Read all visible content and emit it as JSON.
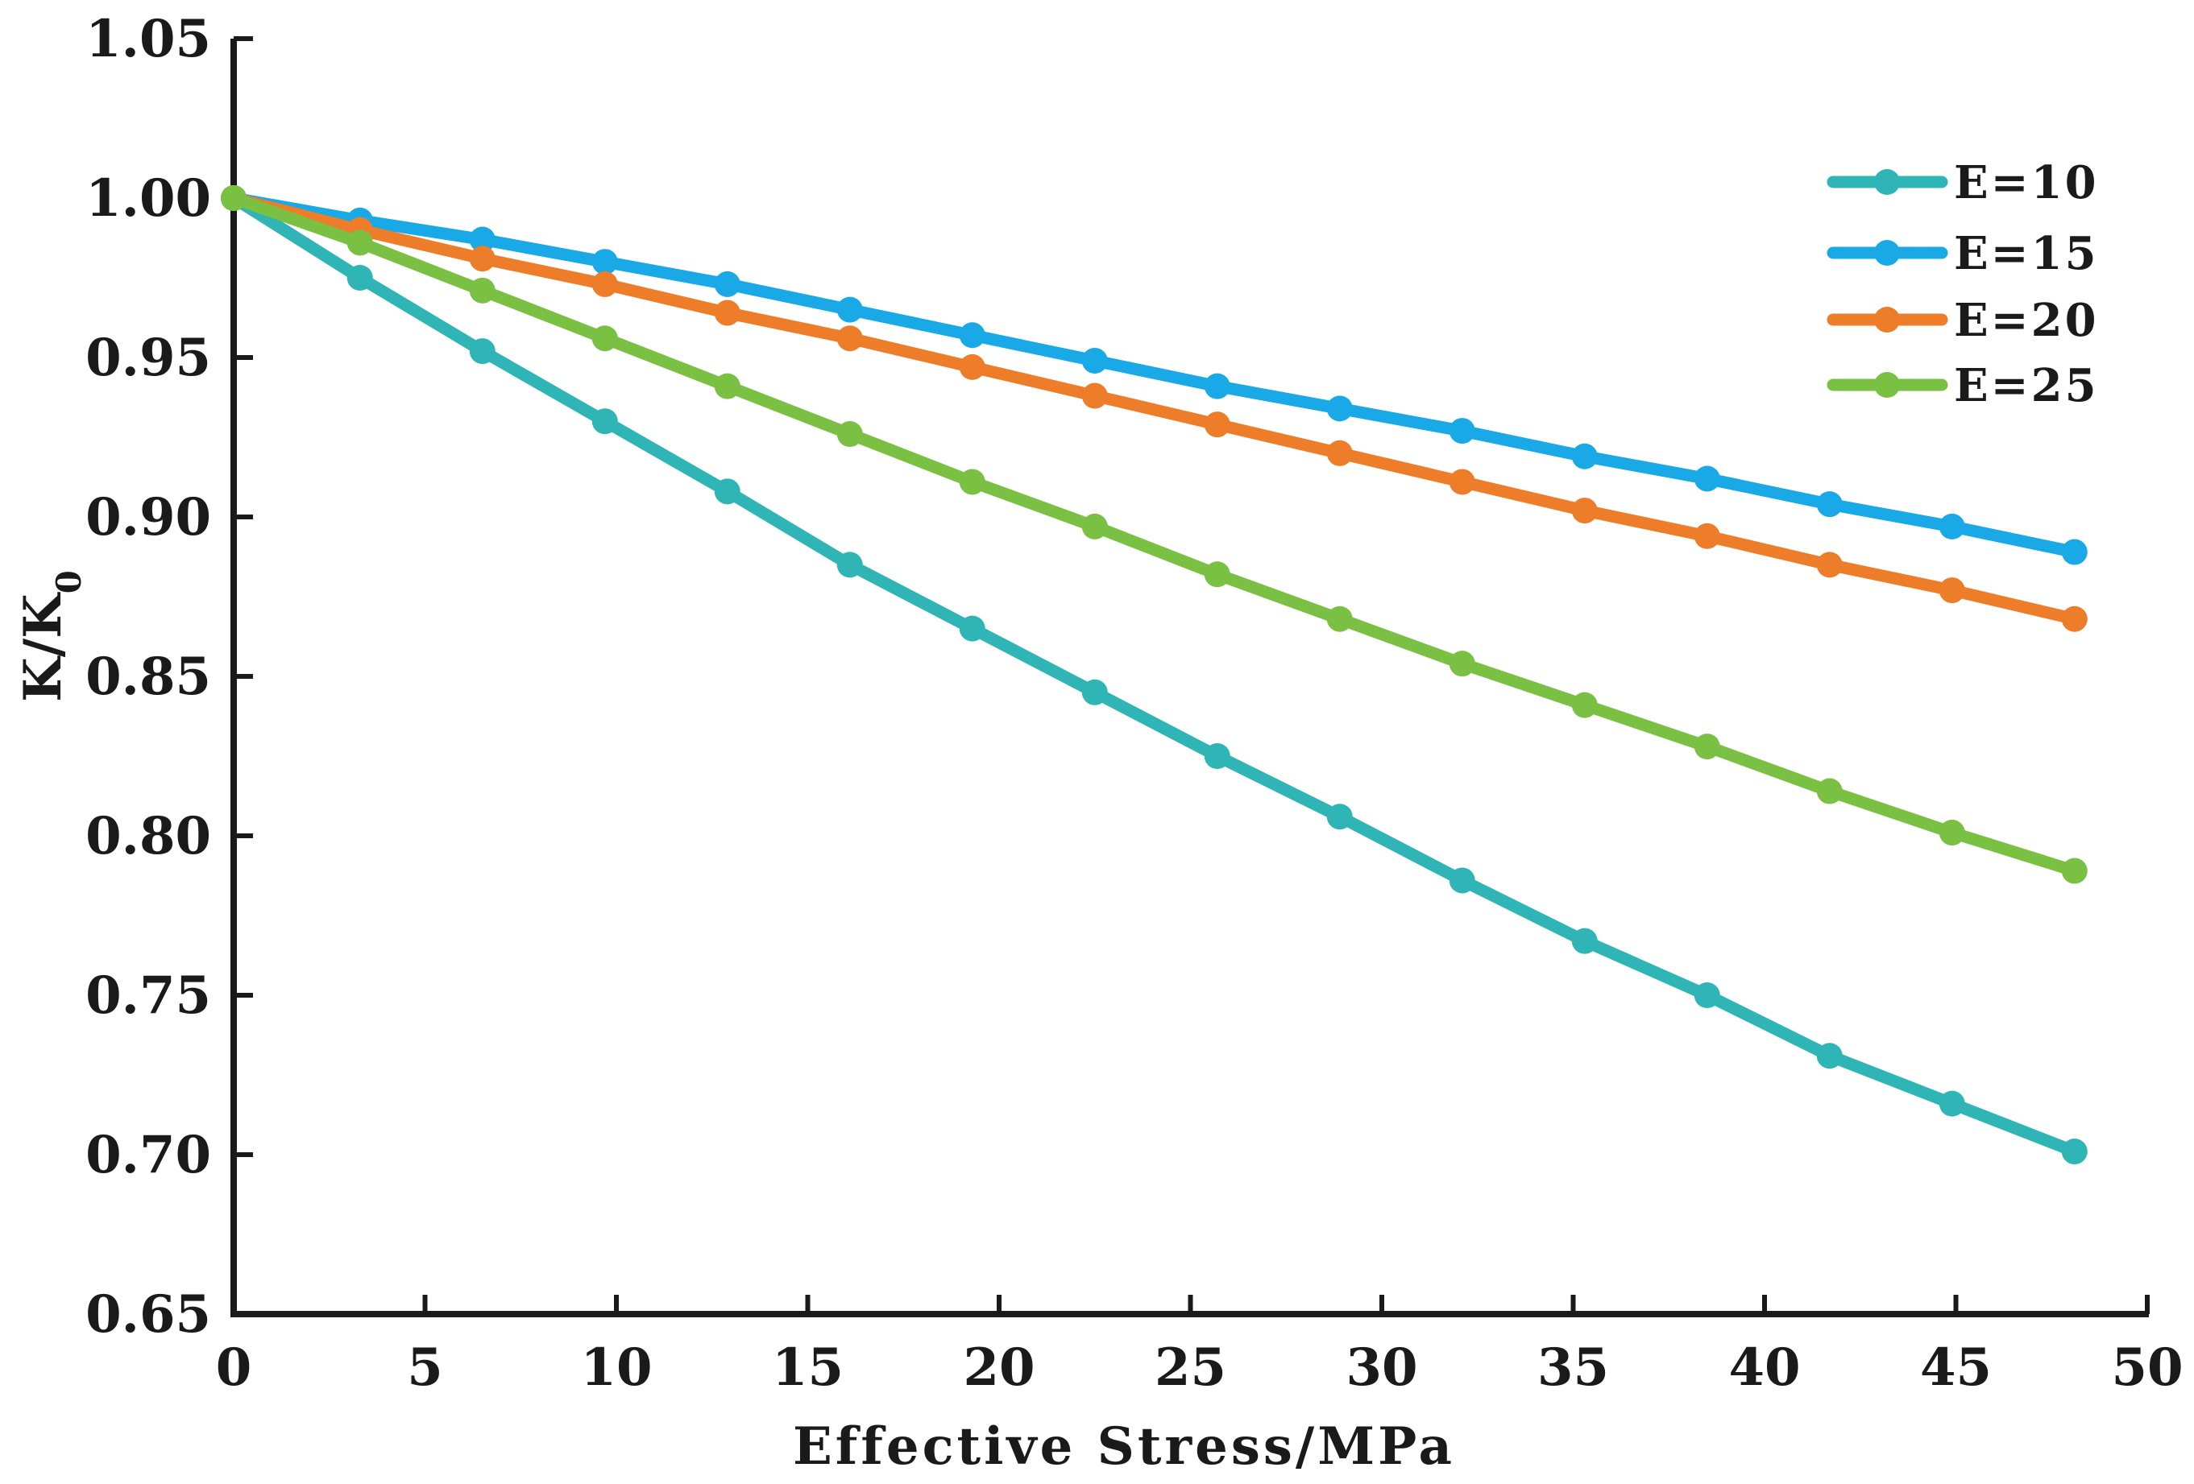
{
  "chart_data": {
    "type": "line",
    "title": "",
    "xlabel": "Effective Stress/MPa",
    "ylabel_main": "K/K",
    "ylabel_sub": "0",
    "xlim": [
      0,
      50
    ],
    "ylim": [
      0.65,
      1.05
    ],
    "xticks": [
      "0",
      "5",
      "10",
      "15",
      "20",
      "25",
      "30",
      "35",
      "40",
      "45",
      "50"
    ],
    "yticks": [
      "0.65",
      "0.70",
      "0.75",
      "0.80",
      "0.85",
      "0.90",
      "0.95",
      "1.00",
      "1.05"
    ],
    "x": [
      0,
      3.3,
      6.5,
      9.7,
      12.9,
      16.1,
      19.3,
      22.5,
      25.7,
      28.9,
      32.1,
      35.3,
      38.5,
      41.7,
      44.9,
      48.1
    ],
    "legend_position": "top-right",
    "series": [
      {
        "name": "E=10",
        "color": "#2fb5b5",
        "values": [
          1.0,
          0.975,
          0.952,
          0.93,
          0.908,
          0.885,
          0.865,
          0.845,
          0.825,
          0.806,
          0.786,
          0.767,
          0.75,
          0.731,
          0.716,
          0.701
        ]
      },
      {
        "name": "E=15",
        "color": "#18a9e6",
        "values": [
          1.0,
          0.993,
          0.987,
          0.98,
          0.973,
          0.965,
          0.957,
          0.949,
          0.941,
          0.934,
          0.927,
          0.919,
          0.912,
          0.904,
          0.897,
          0.889
        ]
      },
      {
        "name": "E=20",
        "color": "#ee7d2a",
        "values": [
          1.0,
          0.99,
          0.981,
          0.973,
          0.964,
          0.956,
          0.947,
          0.938,
          0.929,
          0.92,
          0.911,
          0.902,
          0.894,
          0.885,
          0.877,
          0.868
        ]
      },
      {
        "name": "E=25",
        "color": "#7ac143",
        "values": [
          1.0,
          0.986,
          0.971,
          0.956,
          0.941,
          0.926,
          0.911,
          0.897,
          0.882,
          0.868,
          0.854,
          0.841,
          0.828,
          0.814,
          0.801,
          0.789
        ]
      }
    ]
  }
}
